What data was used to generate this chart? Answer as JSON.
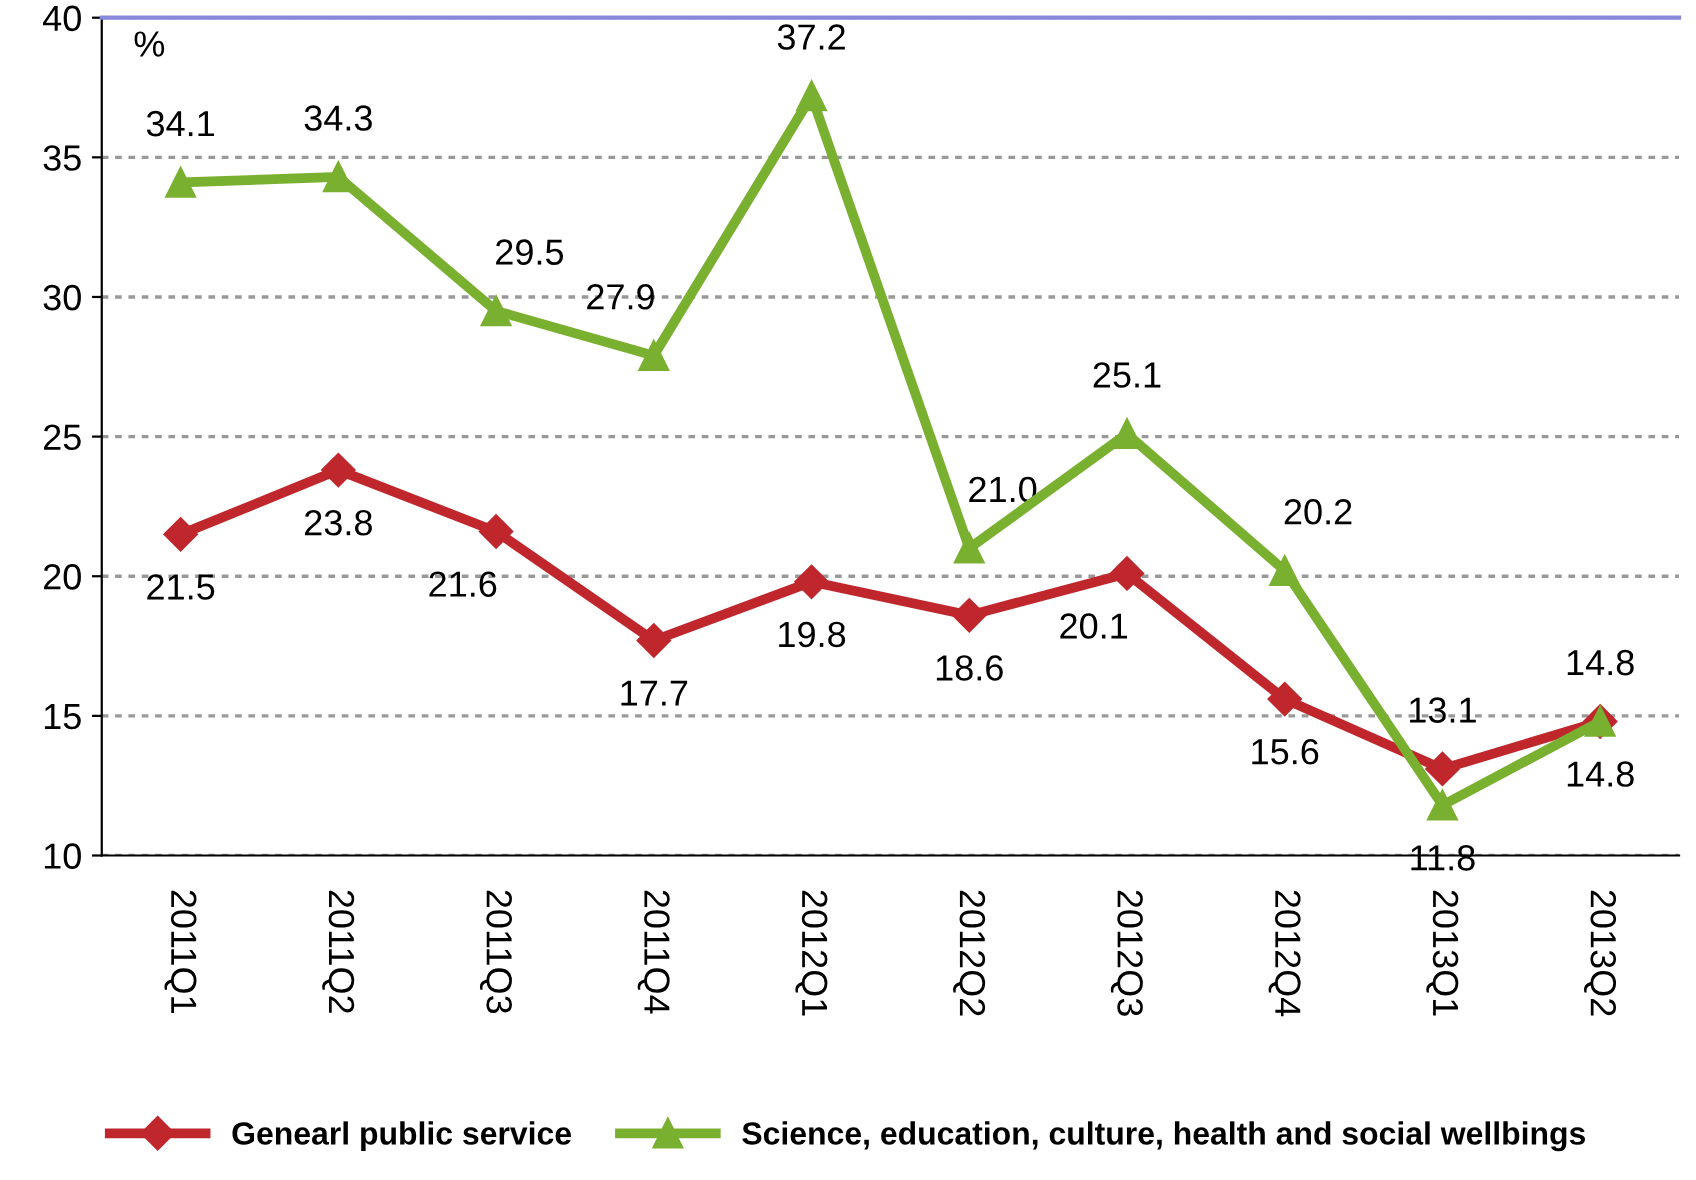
{
  "chart_data": {
    "type": "line",
    "categories": [
      "2011Q1",
      "2011Q2",
      "2011Q3",
      "2011Q4",
      "2012Q1",
      "2012Q2",
      "2012Q3",
      "2012Q4",
      "2013Q1",
      "2013Q2"
    ],
    "series": [
      {
        "name": "Genearl public service",
        "color": "#c0272d",
        "marker": "diamond",
        "values": [
          21.5,
          23.8,
          21.6,
          17.7,
          19.8,
          18.6,
          20.1,
          15.6,
          13.1,
          14.8
        ],
        "value_labels": [
          "21.5",
          "23.8",
          "21.6",
          "17.7",
          "19.8",
          "18.6",
          "20.1",
          "15.6",
          "13.1",
          "14.8"
        ]
      },
      {
        "name": "Science, education, culture, health and social wellbings",
        "color": "#7ab030",
        "marker": "triangle",
        "values": [
          34.1,
          34.3,
          29.5,
          27.9,
          37.2,
          21.0,
          25.1,
          20.2,
          11.8,
          14.8
        ],
        "value_labels": [
          "34.1",
          "34.3",
          "29.5",
          "27.9",
          "37.2",
          "21.0",
          "25.1",
          "20.2",
          "11.8",
          "14.8"
        ]
      }
    ],
    "ylim": [
      10,
      40
    ],
    "yticks": [
      10,
      15,
      20,
      25,
      30,
      35,
      40
    ],
    "grid": "y",
    "legend": "bottom",
    "line_style": "solid",
    "annotations": [
      "%"
    ]
  }
}
